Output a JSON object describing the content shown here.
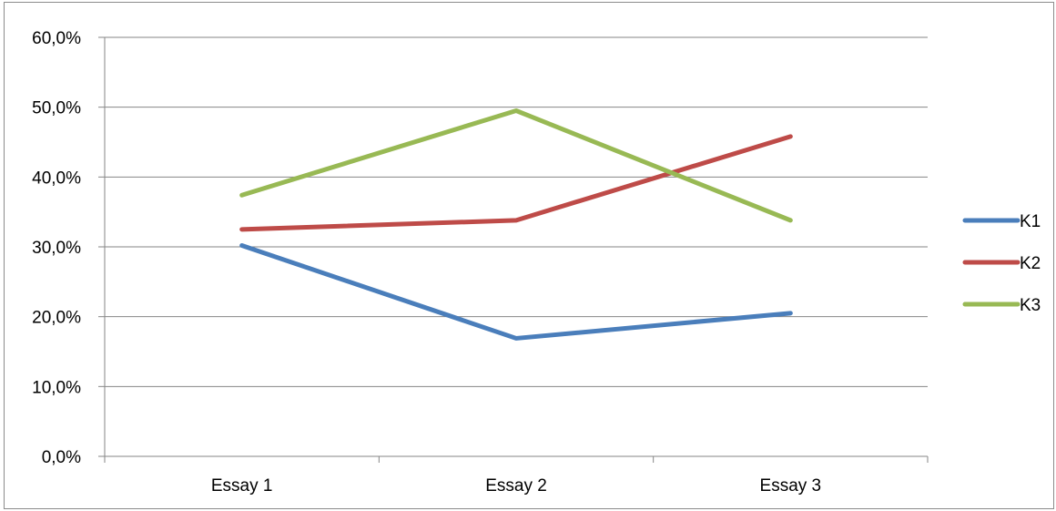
{
  "chart_data": {
    "type": "line",
    "categories": [
      "Essay 1",
      "Essay 2",
      "Essay 3"
    ],
    "series": [
      {
        "name": "K1",
        "values": [
          30.2,
          16.9,
          20.5
        ],
        "color": "#4a7ebb"
      },
      {
        "name": "K2",
        "values": [
          32.5,
          33.8,
          45.8
        ],
        "color": "#be4b48"
      },
      {
        "name": "K3",
        "values": [
          37.4,
          49.5,
          33.8
        ],
        "color": "#98b954"
      }
    ],
    "y_ticks": [
      "0,0%",
      "10,0%",
      "20,0%",
      "30,0%",
      "40,0%",
      "50,0%",
      "60,0%"
    ],
    "ylim": [
      0,
      60
    ],
    "grid": true,
    "legend_position": "right"
  }
}
